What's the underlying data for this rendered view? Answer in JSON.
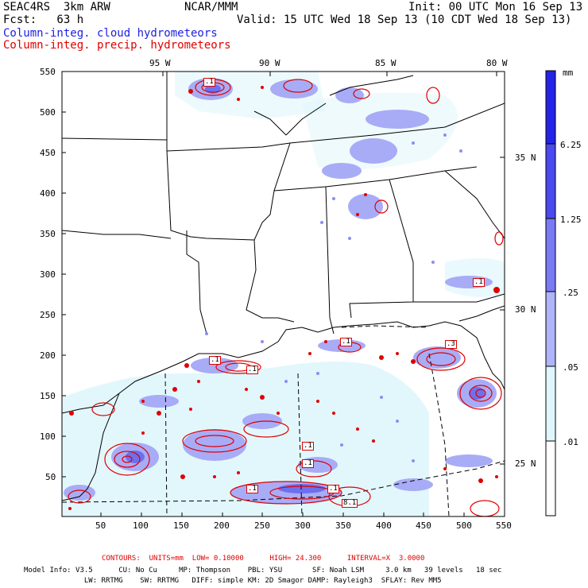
{
  "header": {
    "left_line1": "SEAC4RS  3km ARW",
    "left_line2": "Fcst:   63 h",
    "center": "NCAR/MMM",
    "init": "Init: 00 UTC Mon 16 Sep 13",
    "valid": "Valid: 15 UTC Wed 18 Sep 13 (10 CDT Wed 18 Sep 13)",
    "field1": "Column-integ. cloud hydrometeors",
    "field2": "Column-integ. precip. hydrometeors"
  },
  "map": {
    "lon_labels": [
      "95 W",
      "90 W",
      "85 W",
      "80 W"
    ],
    "lat_labels": [
      "35 N",
      "30 N",
      "25 N"
    ],
    "y_ticks": [
      "550",
      "500",
      "450",
      "400",
      "350",
      "300",
      "250",
      "200",
      "150",
      "100",
      "50"
    ],
    "x_ticks": [
      "50",
      "100",
      "150",
      "200",
      "250",
      "300",
      "350",
      "400",
      "450",
      "500",
      "550"
    ],
    "contour_labels": [
      ".1",
      ".1",
      ".1",
      ".1",
      ".3",
      ".1",
      ".1",
      ".1",
      ".1",
      ".1",
      "8.1"
    ],
    "colors": {
      "land_outline": "#000000",
      "cloud": "#8080ff",
      "precip_contour": "#e00000",
      "light_shade": "#d8f0fb"
    }
  },
  "legend": {
    "unit": "mm",
    "labels": [
      "6.25",
      "1.25",
      ".25",
      ".05",
      ".01"
    ],
    "colors": [
      "#2424e8",
      "#4a4af0",
      "#7a7af5",
      "#b0b4f8",
      "#dff6fc",
      "#ffffff"
    ]
  },
  "footer": {
    "contours": "CONTOURS:  UNITS=mm  LOW= 0.10000      HIGH= 24.300      INTERVAL=X  3.0000",
    "model_line1": "Model Info: V3.5      CU: No Cu     MP: Thompson    PBL: YSU       SF: Noah LSM     3.0 km   39 levels   18 sec",
    "model_line2": "              LW: RRTMG    SW: RRTMG   DIFF: simple KM: 2D Smagor DAMP: Rayleigh3  SFLAY: Rev MM5"
  }
}
